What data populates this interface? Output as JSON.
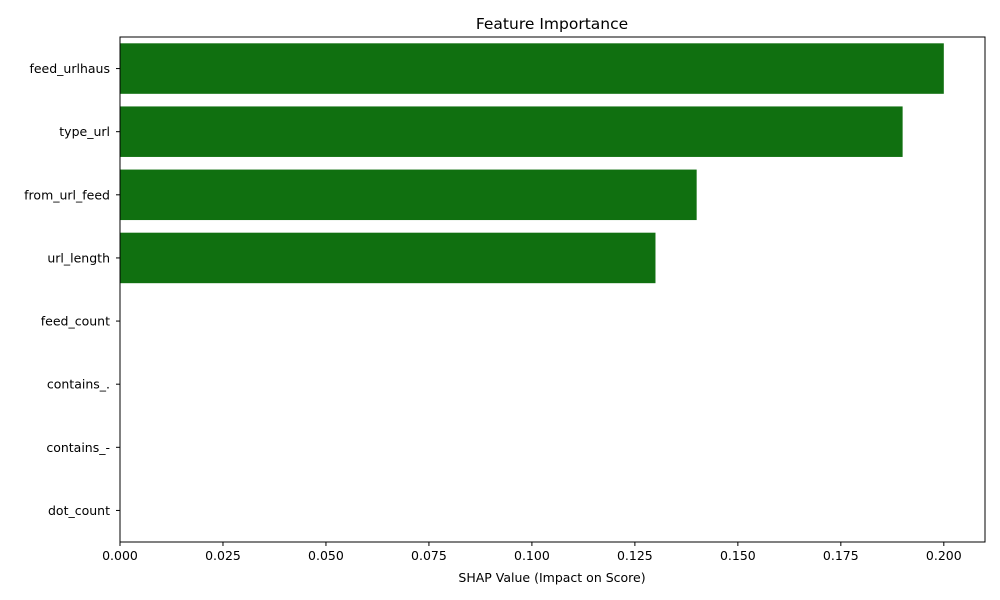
{
  "chart_data": {
    "type": "bar",
    "orientation": "horizontal",
    "title": "Feature Importance",
    "xlabel": "SHAP Value (Impact on Score)",
    "ylabel": "",
    "categories": [
      "feed_urlhaus",
      "type_url",
      "from_url_feed",
      "url_length",
      "feed_count",
      "contains_.",
      "contains_-",
      "dot_count"
    ],
    "values": [
      0.2,
      0.19,
      0.14,
      0.13,
      0.0,
      0.0,
      0.0,
      0.0
    ],
    "xlim": [
      0.0,
      0.21
    ],
    "xticks": [
      0.0,
      0.025,
      0.05,
      0.075,
      0.1,
      0.125,
      0.15,
      0.175,
      0.2
    ],
    "xtick_labels": [
      "0.000",
      "0.025",
      "0.050",
      "0.075",
      "0.100",
      "0.125",
      "0.150",
      "0.175",
      "0.200"
    ],
    "bar_color": "#107010",
    "grid": false,
    "legend": "none"
  }
}
